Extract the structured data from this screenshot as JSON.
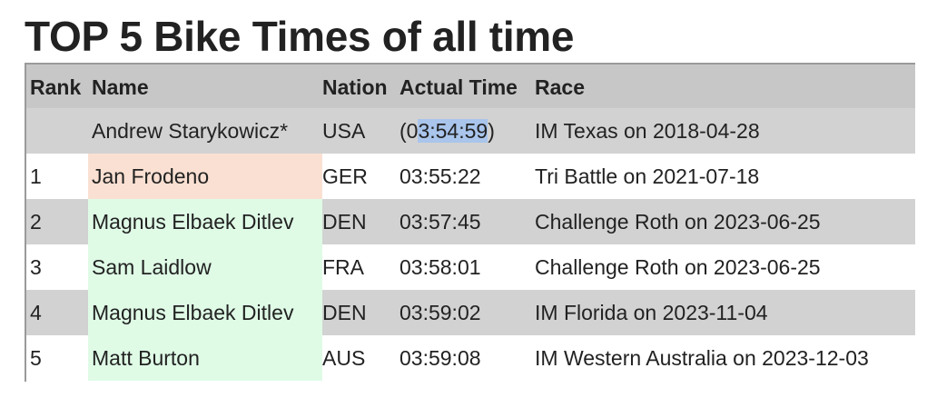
{
  "page": {
    "title": "TOP 5 Bike Times of all time"
  },
  "table": {
    "headers": {
      "rank": "Rank",
      "name": "Name",
      "nation": "Nation",
      "time": "Actual Time",
      "race": "Race"
    },
    "special_row": {
      "rank": "",
      "name": "Andrew Starykowicz*",
      "nation": "USA",
      "time_prefix": "(0",
      "time_selected": "3:54:59",
      "time_suffix": ")",
      "race": "IM Texas on 2018-04-28"
    },
    "rows": [
      {
        "rank": "1",
        "name": "Jan Frodeno",
        "nation": "GER",
        "time": "03:55:22",
        "race": "Tri Battle on 2021-07-18",
        "name_highlight": "#fae0d2"
      },
      {
        "rank": "2",
        "name": "Magnus Elbaek Ditlev",
        "nation": "DEN",
        "time": "03:57:45",
        "race": "Challenge Roth on 2023-06-25",
        "name_highlight": "#dffbe6"
      },
      {
        "rank": "3",
        "name": "Sam Laidlow",
        "nation": "FRA",
        "time": "03:58:01",
        "race": "Challenge Roth on 2023-06-25",
        "name_highlight": "#dffbe6"
      },
      {
        "rank": "4",
        "name": "Magnus Elbaek Ditlev",
        "nation": "DEN",
        "time": "03:59:02",
        "race": "IM Florida on 2023-11-04",
        "name_highlight": "#dffbe6"
      },
      {
        "rank": "5",
        "name": "Matt Burton",
        "nation": "AUS",
        "time": "03:59:08",
        "race": "IM Western Australia on 2023-12-03",
        "name_highlight": "#dffbe6"
      }
    ]
  },
  "colors": {
    "header_bg": "#c7c7c7",
    "stripe_bg": "#d2d2d2",
    "selection_bg": "#a9c5ec"
  }
}
